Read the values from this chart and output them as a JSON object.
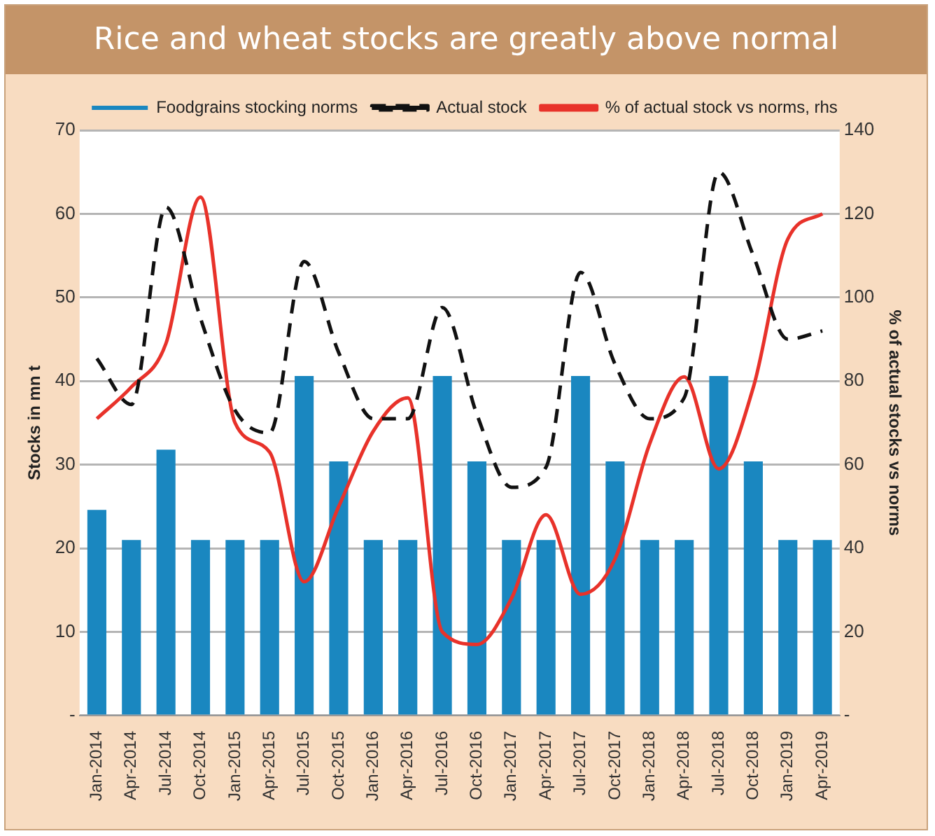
{
  "chart_data": {
    "type": "bar",
    "title": "Rice and wheat stocks are greatly above normal",
    "ylabel": "Stocks in mn t",
    "y2label": "% of actual stocks vs norms",
    "categories": [
      "Jan-2014",
      "Apr-2014",
      "Jul-2014",
      "Oct-2014",
      "Jan-2015",
      "Apr-2015",
      "Jul-2015",
      "Oct-2015",
      "Jan-2016",
      "Apr-2016",
      "Jul-2016",
      "Oct-2016",
      "Jan-2017",
      "Apr-2017",
      "Jul-2017",
      "Oct-2017",
      "Jan-2018",
      "Apr-2018",
      "Jul-2018",
      "Oct-2018",
      "Jan-2019",
      "Apr-2019"
    ],
    "series": [
      {
        "name": "Foodgrains stocking norms",
        "color": "#1a87c0",
        "values": [
          24.6,
          21,
          31.8,
          21,
          21,
          21,
          40.6,
          30.4,
          21,
          21,
          40.6,
          30.4,
          21,
          21,
          40.6,
          30.4,
          21,
          21,
          40.6,
          30.4,
          21,
          21
        ]
      },
      {
        "name": "Actual stock",
        "type": "line",
        "color": "#111111",
        "line_style": "dashed",
        "values": [
          42.7,
          37.2,
          60.8,
          47.5,
          36.5,
          33.8,
          54.3,
          43.4,
          35.5,
          35.5,
          48.8,
          36,
          27.3,
          29.7,
          53,
          42,
          35.5,
          38,
          65,
          55,
          45,
          46
        ]
      },
      {
        "name": "% of actual stock vs norms, rhs",
        "type": "line",
        "axis": "y2",
        "color": "#e8322a",
        "line_style": "solid",
        "values": [
          71,
          78.6,
          89,
          124,
          70,
          63,
          32,
          50,
          68,
          76,
          20,
          17,
          28,
          48,
          29,
          37.5,
          65,
          81,
          59,
          78.5,
          114,
          120
        ]
      }
    ],
    "ylim": [
      0,
      70
    ],
    "yticks": [
      {
        "value": 0,
        "label": "-"
      },
      10,
      20,
      30,
      40,
      50,
      60,
      70
    ],
    "y2lim": [
      0,
      140
    ],
    "y2ticks": [
      {
        "value": 0,
        "label": "-"
      },
      20,
      40,
      60,
      80,
      100,
      120,
      140
    ],
    "grid": "y",
    "legend": "top",
    "marker": "none"
  }
}
